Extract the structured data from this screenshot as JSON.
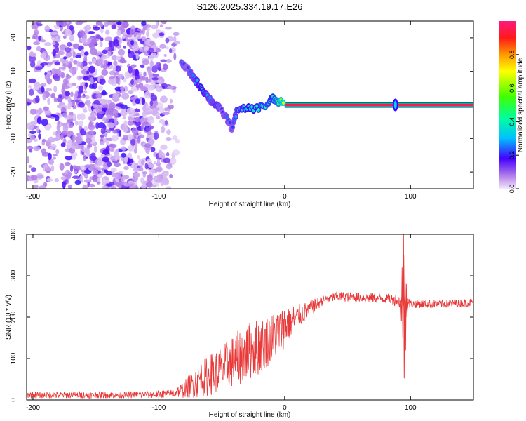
{
  "title": "S126.2025.334.19.17.E26",
  "chart_data": [
    {
      "type": "heatmap",
      "name": "spectrogram",
      "xlabel": "Height of straight line (km)",
      "ylabel": "Frequency (Hz)",
      "xlim": [
        -205,
        150
      ],
      "ylim": [
        -25,
        25
      ],
      "xticks": [
        -200,
        -100,
        0,
        100
      ],
      "yticks": [
        -20,
        -10,
        0,
        10,
        20
      ],
      "colorbar": {
        "label": "Normalized spectral amplitude",
        "range": [
          0,
          1
        ],
        "ticks": [
          0.0,
          0.2,
          0.4,
          0.6,
          0.8
        ]
      },
      "features": {
        "noise_region_x": [
          -205,
          -90
        ],
        "trace_points": [
          {
            "x": -82,
            "y": 12,
            "amp": 0.25
          },
          {
            "x": -78,
            "y": 11,
            "amp": 0.2
          },
          {
            "x": -74,
            "y": 9,
            "amp": 0.25
          },
          {
            "x": -70,
            "y": 7,
            "amp": 0.3
          },
          {
            "x": -66,
            "y": 5,
            "amp": 0.35
          },
          {
            "x": -62,
            "y": 3,
            "amp": 0.3
          },
          {
            "x": -58,
            "y": 1,
            "amp": 0.25
          },
          {
            "x": -54,
            "y": 0,
            "amp": 0.3
          },
          {
            "x": -50,
            "y": -2,
            "amp": 0.2
          },
          {
            "x": -46,
            "y": -4,
            "amp": 0.25
          },
          {
            "x": -42,
            "y": -7,
            "amp": 0.2
          },
          {
            "x": -38,
            "y": -2,
            "amp": 0.3
          },
          {
            "x": -30,
            "y": -1,
            "amp": 0.35
          },
          {
            "x": -22,
            "y": -1,
            "amp": 0.4
          },
          {
            "x": -14,
            "y": 0,
            "amp": 0.45
          },
          {
            "x": -10,
            "y": 2,
            "amp": 0.4
          },
          {
            "x": -6,
            "y": 1,
            "amp": 0.5
          },
          {
            "x": 0,
            "y": 0.5,
            "amp": 0.7
          }
        ],
        "steady_line": {
          "x_start": 0,
          "x_end": 150,
          "y": 0,
          "amp": 0.95
        },
        "spike_x": 88
      }
    },
    {
      "type": "line",
      "name": "snr",
      "xlabel": "Height of straight line (km)",
      "ylabel": "SNR (10 * v/v)",
      "xlim": [
        -205,
        150
      ],
      "ylim": [
        0,
        400
      ],
      "xticks": [
        -200,
        -100,
        0,
        100
      ],
      "yticks": [
        0,
        100,
        200,
        300,
        400
      ],
      "color": "#e83a3a",
      "envelope": {
        "x": [
          -205,
          -120,
          -90,
          -80,
          -70,
          -60,
          -50,
          -40,
          -30,
          -20,
          -10,
          0,
          10,
          20,
          30,
          40,
          60,
          80,
          90,
          93,
          95,
          97,
          100,
          120,
          150
        ],
        "y": [
          12,
          12,
          15,
          25,
          45,
          60,
          75,
          95,
          115,
          130,
          150,
          180,
          200,
          220,
          240,
          250,
          248,
          245,
          240,
          235,
          240,
          235,
          232,
          232,
          235
        ],
        "noise_amplitude": [
          8,
          8,
          10,
          20,
          40,
          50,
          55,
          65,
          70,
          70,
          60,
          55,
          30,
          20,
          12,
          12,
          12,
          12,
          15,
          20,
          20,
          20,
          10,
          10,
          10
        ]
      },
      "spike": {
        "x": 95,
        "min": 52,
        "max": 400
      }
    }
  ]
}
